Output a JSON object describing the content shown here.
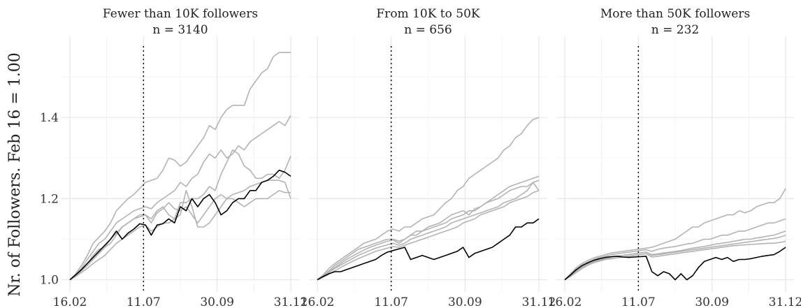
{
  "chart_data": {
    "type": "line",
    "ylabel": "Nr. of Followers. Feb 16 = 1.00",
    "x_ticks": [
      "16.02",
      "11.07",
      "30.09",
      "31.12"
    ],
    "y_ticks": [
      "1.0",
      "1.2",
      "1.4"
    ],
    "ylim": [
      0.97,
      1.6
    ],
    "vline_at": "11.07",
    "panels": [
      {
        "title": "Fewer than 10K followers",
        "subtitle": "n = 3140",
        "highlight_series": {
          "color": "#000000",
          "values": [
            1.0,
            1.012,
            1.025,
            1.04,
            1.055,
            1.07,
            1.085,
            1.1,
            1.12,
            1.1,
            1.115,
            1.125,
            1.138,
            1.135,
            1.11,
            1.135,
            1.138,
            1.15,
            1.14,
            1.18,
            1.17,
            1.2,
            1.18,
            1.2,
            1.21,
            1.19,
            1.16,
            1.17,
            1.19,
            1.2,
            1.2,
            1.22,
            1.22,
            1.24,
            1.245,
            1.255,
            1.27,
            1.265,
            1.255
          ]
        },
        "grey_series": [
          {
            "values": [
              1.0,
              1.015,
              1.035,
              1.06,
              1.09,
              1.105,
              1.12,
              1.14,
              1.17,
              1.185,
              1.2,
              1.21,
              1.225,
              1.24,
              1.245,
              1.25,
              1.27,
              1.3,
              1.295,
              1.28,
              1.29,
              1.31,
              1.33,
              1.35,
              1.38,
              1.37,
              1.4,
              1.42,
              1.43,
              1.43,
              1.43,
              1.47,
              1.49,
              1.51,
              1.52,
              1.55,
              1.56,
              1.56,
              1.56
            ]
          },
          {
            "values": [
              1.0,
              1.012,
              1.028,
              1.05,
              1.07,
              1.09,
              1.1,
              1.12,
              1.14,
              1.15,
              1.16,
              1.17,
              1.175,
              1.18,
              1.175,
              1.19,
              1.2,
              1.21,
              1.22,
              1.24,
              1.23,
              1.25,
              1.26,
              1.29,
              1.31,
              1.3,
              1.32,
              1.3,
              1.31,
              1.33,
              1.32,
              1.34,
              1.35,
              1.36,
              1.37,
              1.38,
              1.39,
              1.38,
              1.405
            ]
          },
          {
            "values": [
              1.0,
              1.01,
              1.025,
              1.04,
              1.06,
              1.075,
              1.08,
              1.09,
              1.11,
              1.13,
              1.14,
              1.15,
              1.16,
              1.16,
              1.15,
              1.17,
              1.18,
              1.16,
              1.15,
              1.19,
              1.19,
              1.2,
              1.2,
              1.21,
              1.23,
              1.22,
              1.26,
              1.29,
              1.32,
              1.31,
              1.28,
              1.27,
              1.25,
              1.25,
              1.26,
              1.26,
              1.25,
              1.27,
              1.305
            ]
          },
          {
            "values": [
              1.0,
              1.01,
              1.022,
              1.035,
              1.05,
              1.065,
              1.08,
              1.1,
              1.115,
              1.13,
              1.14,
              1.15,
              1.155,
              1.16,
              1.14,
              1.165,
              1.175,
              1.19,
              1.175,
              1.17,
              1.18,
              1.16,
              1.14,
              1.16,
              1.18,
              1.2,
              1.21,
              1.2,
              1.21,
              1.215,
              1.22,
              1.23,
              1.235,
              1.24,
              1.245,
              1.245,
              1.245,
              1.24,
              1.2
            ]
          },
          {
            "values": [
              1.0,
              1.008,
              1.018,
              1.028,
              1.04,
              1.05,
              1.06,
              1.075,
              1.09,
              1.1,
              1.11,
              1.12,
              1.13,
              1.135,
              1.12,
              1.13,
              1.14,
              1.14,
              1.15,
              1.16,
              1.22,
              1.18,
              1.13,
              1.13,
              1.14,
              1.16,
              1.18,
              1.2,
              1.2,
              1.19,
              1.18,
              1.19,
              1.2,
              1.2,
              1.2,
              1.21,
              1.22,
              1.215,
              1.215
            ]
          }
        ]
      },
      {
        "title": "From 10K to 50K",
        "subtitle": "n = 656",
        "highlight_series": {
          "color": "#000000",
          "values": [
            1.0,
            1.008,
            1.015,
            1.02,
            1.02,
            1.025,
            1.03,
            1.035,
            1.04,
            1.045,
            1.05,
            1.06,
            1.068,
            1.072,
            1.076,
            1.08,
            1.05,
            1.055,
            1.06,
            1.055,
            1.05,
            1.055,
            1.06,
            1.065,
            1.07,
            1.08,
            1.055,
            1.065,
            1.07,
            1.075,
            1.08,
            1.09,
            1.1,
            1.11,
            1.13,
            1.13,
            1.14,
            1.14,
            1.15
          ]
        },
        "grey_series": [
          {
            "values": [
              1.0,
              1.012,
              1.028,
              1.04,
              1.05,
              1.06,
              1.07,
              1.08,
              1.09,
              1.095,
              1.1,
              1.11,
              1.12,
              1.125,
              1.12,
              1.13,
              1.13,
              1.14,
              1.15,
              1.155,
              1.16,
              1.175,
              1.19,
              1.2,
              1.22,
              1.23,
              1.25,
              1.26,
              1.27,
              1.28,
              1.29,
              1.3,
              1.32,
              1.33,
              1.35,
              1.36,
              1.38,
              1.395,
              1.4
            ]
          },
          {
            "values": [
              1.0,
              1.01,
              1.022,
              1.035,
              1.045,
              1.055,
              1.065,
              1.075,
              1.08,
              1.085,
              1.09,
              1.095,
              1.1,
              1.1,
              1.095,
              1.1,
              1.11,
              1.12,
              1.12,
              1.13,
              1.135,
              1.14,
              1.15,
              1.16,
              1.165,
              1.17,
              1.16,
              1.175,
              1.18,
              1.19,
              1.2,
              1.21,
              1.22,
              1.23,
              1.235,
              1.24,
              1.245,
              1.25,
              1.255
            ]
          },
          {
            "values": [
              1.0,
              1.01,
              1.02,
              1.03,
              1.04,
              1.05,
              1.058,
              1.066,
              1.073,
              1.08,
              1.085,
              1.09,
              1.095,
              1.098,
              1.09,
              1.1,
              1.11,
              1.11,
              1.12,
              1.125,
              1.13,
              1.135,
              1.14,
              1.15,
              1.155,
              1.16,
              1.17,
              1.17,
              1.18,
              1.19,
              1.195,
              1.2,
              1.21,
              1.22,
              1.225,
              1.23,
              1.23,
              1.24,
              1.245
            ]
          },
          {
            "values": [
              1.0,
              1.008,
              1.018,
              1.028,
              1.036,
              1.044,
              1.052,
              1.06,
              1.066,
              1.072,
              1.078,
              1.082,
              1.086,
              1.09,
              1.085,
              1.09,
              1.1,
              1.105,
              1.11,
              1.115,
              1.12,
              1.125,
              1.13,
              1.14,
              1.145,
              1.15,
              1.155,
              1.16,
              1.165,
              1.17,
              1.175,
              1.18,
              1.19,
              1.195,
              1.2,
              1.21,
              1.22,
              1.24,
              1.22
            ]
          },
          {
            "values": [
              1.0,
              1.006,
              1.014,
              1.022,
              1.03,
              1.038,
              1.045,
              1.052,
              1.058,
              1.064,
              1.07,
              1.074,
              1.078,
              1.082,
              1.08,
              1.085,
              1.09,
              1.095,
              1.1,
              1.105,
              1.11,
              1.115,
              1.12,
              1.125,
              1.13,
              1.14,
              1.145,
              1.15,
              1.16,
              1.165,
              1.17,
              1.175,
              1.18,
              1.19,
              1.195,
              1.2,
              1.205,
              1.215,
              1.22
            ]
          }
        ]
      },
      {
        "title": "More than 50K followers",
        "subtitle": "n = 232",
        "highlight_series": {
          "color": "#000000",
          "values": [
            1.0,
            1.012,
            1.025,
            1.035,
            1.042,
            1.048,
            1.052,
            1.055,
            1.057,
            1.058,
            1.056,
            1.055,
            1.056,
            1.057,
            1.058,
            1.02,
            1.01,
            1.02,
            1.015,
            1.0,
            1.015,
            1.0,
            1.01,
            1.03,
            1.045,
            1.05,
            1.055,
            1.05,
            1.055,
            1.045,
            1.05,
            1.05,
            1.052,
            1.055,
            1.058,
            1.06,
            1.062,
            1.07,
            1.08
          ]
        },
        "grey_series": [
          {
            "values": [
              1.0,
              1.015,
              1.03,
              1.04,
              1.048,
              1.054,
              1.058,
              1.062,
              1.066,
              1.068,
              1.07,
              1.072,
              1.074,
              1.076,
              1.078,
              1.08,
              1.085,
              1.09,
              1.095,
              1.1,
              1.11,
              1.12,
              1.13,
              1.13,
              1.14,
              1.145,
              1.15,
              1.155,
              1.16,
              1.16,
              1.17,
              1.165,
              1.17,
              1.18,
              1.185,
              1.19,
              1.19,
              1.2,
              1.225
            ]
          },
          {
            "values": [
              1.0,
              1.012,
              1.026,
              1.036,
              1.044,
              1.05,
              1.055,
              1.058,
              1.062,
              1.064,
              1.066,
              1.068,
              1.07,
              1.072,
              1.074,
              1.07,
              1.075,
              1.078,
              1.08,
              1.082,
              1.085,
              1.088,
              1.09,
              1.095,
              1.1,
              1.1,
              1.105,
              1.11,
              1.11,
              1.115,
              1.12,
              1.12,
              1.125,
              1.13,
              1.135,
              1.14,
              1.14,
              1.145,
              1.15
            ]
          },
          {
            "values": [
              1.0,
              1.01,
              1.022,
              1.032,
              1.04,
              1.046,
              1.05,
              1.054,
              1.056,
              1.058,
              1.06,
              1.062,
              1.064,
              1.066,
              1.068,
              1.062,
              1.064,
              1.066,
              1.068,
              1.07,
              1.072,
              1.075,
              1.078,
              1.08,
              1.082,
              1.085,
              1.088,
              1.09,
              1.092,
              1.095,
              1.097,
              1.1,
              1.1,
              1.103,
              1.105,
              1.108,
              1.11,
              1.115,
              1.12
            ]
          },
          {
            "values": [
              1.0,
              1.01,
              1.02,
              1.03,
              1.038,
              1.044,
              1.048,
              1.052,
              1.055,
              1.058,
              1.06,
              1.062,
              1.064,
              1.066,
              1.068,
              1.06,
              1.062,
              1.064,
              1.066,
              1.068,
              1.07,
              1.072,
              1.074,
              1.076,
              1.078,
              1.08,
              1.082,
              1.084,
              1.086,
              1.088,
              1.09,
              1.092,
              1.094,
              1.096,
              1.098,
              1.1,
              1.102,
              1.105,
              1.11
            ]
          },
          {
            "values": [
              1.0,
              1.008,
              1.018,
              1.028,
              1.036,
              1.042,
              1.046,
              1.05,
              1.052,
              1.054,
              1.056,
              1.058,
              1.06,
              1.062,
              1.064,
              1.056,
              1.058,
              1.06,
              1.062,
              1.064,
              1.066,
              1.068,
              1.07,
              1.072,
              1.074,
              1.076,
              1.078,
              1.08,
              1.082,
              1.084,
              1.085,
              1.086,
              1.087,
              1.088,
              1.089,
              1.09,
              1.09,
              1.092,
              1.095
            ]
          }
        ]
      }
    ],
    "colors": {
      "grey_series": "#b3b3b3",
      "highlight": "#000000",
      "vline": "#000000"
    }
  }
}
